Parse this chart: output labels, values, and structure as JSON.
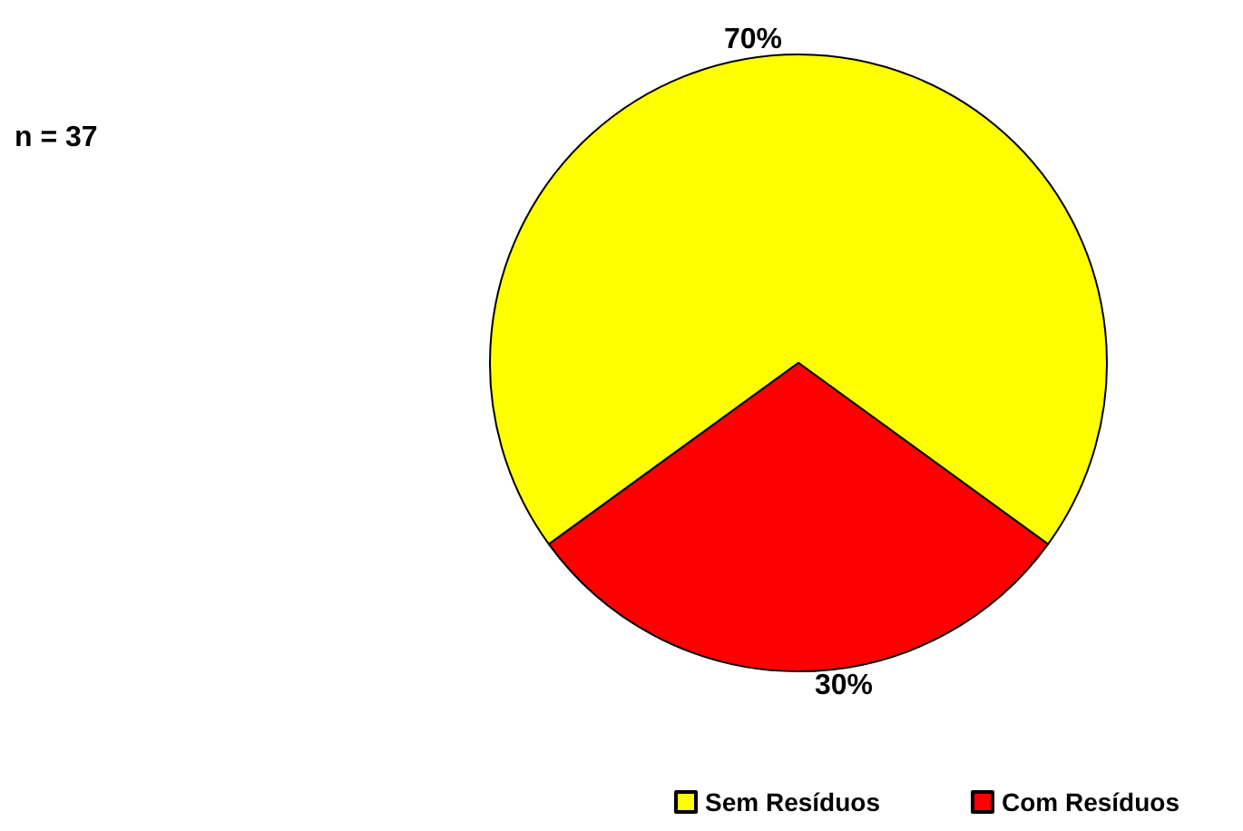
{
  "chart_data": {
    "type": "pie",
    "categories": [
      "Sem Resíduos",
      "Com Resíduos"
    ],
    "values": [
      70,
      30
    ],
    "colors": [
      "#ffff00",
      "#ff0000"
    ],
    "value_labels": [
      "70%",
      "30%"
    ],
    "annotations": [
      "n = 37"
    ],
    "legend": "bottom right"
  }
}
